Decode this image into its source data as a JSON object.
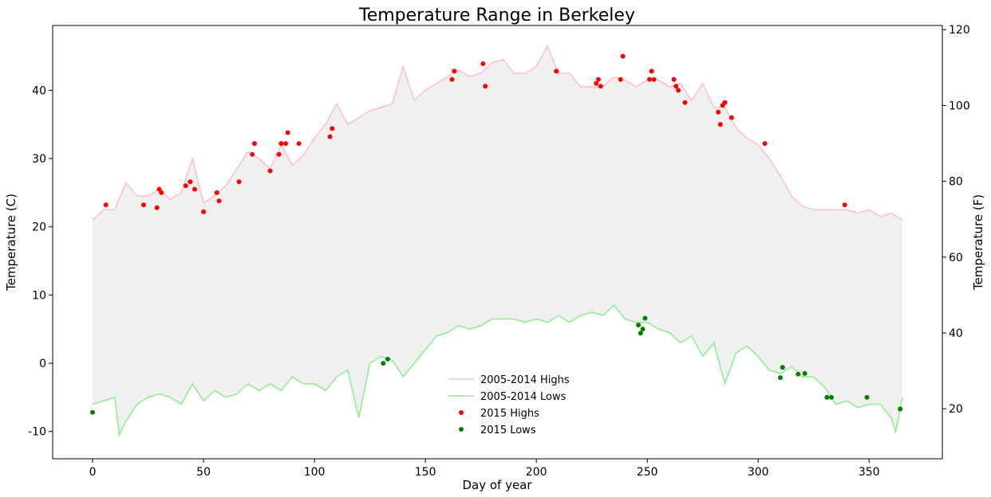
{
  "chart_data": {
    "type": "line",
    "title": "Temperature Range in Berkeley",
    "xlabel": "Day of year",
    "ylabel": "Temperature (C)",
    "ylabel_right": "Temperature (F)",
    "xlim": [
      -18,
      383
    ],
    "ylim": [
      -14,
      49.5
    ],
    "ylim_right": [
      6.8,
      121.1
    ],
    "xticks": [
      0,
      50,
      100,
      150,
      200,
      250,
      300,
      350
    ],
    "yticks": [
      -10,
      0,
      10,
      20,
      30,
      40
    ],
    "yticks_right": [
      20,
      40,
      60,
      80,
      100,
      120
    ],
    "fill_between_color": "#f0f0f0",
    "grid": false,
    "legend_position": "lower-center",
    "series": [
      {
        "name": "2005-2014 Highs",
        "color": "#ffc0cb",
        "x": [
          0,
          5,
          10,
          15,
          20,
          25,
          30,
          35,
          40,
          45,
          50,
          55,
          60,
          65,
          70,
          75,
          80,
          85,
          90,
          95,
          100,
          105,
          110,
          115,
          120,
          125,
          130,
          135,
          140,
          145,
          150,
          155,
          160,
          165,
          170,
          175,
          180,
          185,
          190,
          195,
          200,
          205,
          210,
          215,
          220,
          225,
          230,
          235,
          240,
          245,
          250,
          255,
          260,
          265,
          270,
          275,
          280,
          285,
          290,
          295,
          300,
          305,
          310,
          315,
          320,
          325,
          330,
          335,
          340,
          345,
          350,
          355,
          360,
          365
        ],
        "y": [
          21,
          22.5,
          22.5,
          26.5,
          24.5,
          24.5,
          25.5,
          24,
          25,
          30,
          23.5,
          24.5,
          26,
          28.5,
          31,
          30,
          28.5,
          32,
          29,
          30.5,
          33,
          35,
          38,
          35,
          36,
          37,
          37.5,
          38,
          43.5,
          38.5,
          40,
          41,
          42,
          43,
          42,
          42.5,
          44,
          44.5,
          42.5,
          42.5,
          43.5,
          46.5,
          42.5,
          42.5,
          40.5,
          40.5,
          40.5,
          42,
          41.5,
          40.5,
          41.5,
          41.5,
          40.5,
          41,
          38.5,
          41,
          37.5,
          37.5,
          34.5,
          33,
          32,
          30,
          27.5,
          24.5,
          23,
          22.5,
          22.5,
          22.5,
          22.5,
          22,
          22.5,
          21.5,
          22,
          21
        ]
      },
      {
        "name": "2005-2014 Lows",
        "color": "#90ee90",
        "x": [
          0,
          5,
          10,
          12,
          15,
          20,
          25,
          30,
          35,
          40,
          45,
          50,
          55,
          60,
          65,
          70,
          75,
          80,
          85,
          90,
          95,
          100,
          105,
          110,
          115,
          120,
          125,
          130,
          135,
          140,
          145,
          150,
          155,
          160,
          165,
          170,
          175,
          180,
          185,
          190,
          195,
          200,
          205,
          210,
          215,
          220,
          225,
          230,
          235,
          240,
          245,
          250,
          255,
          260,
          265,
          270,
          275,
          280,
          285,
          290,
          295,
          300,
          305,
          310,
          315,
          320,
          325,
          330,
          335,
          340,
          345,
          350,
          355,
          360,
          362,
          365
        ],
        "y": [
          -6,
          -5.5,
          -5,
          -10.5,
          -8.5,
          -6,
          -5,
          -4.5,
          -5,
          -6,
          -3,
          -5.5,
          -4,
          -5,
          -4.5,
          -3,
          -4,
          -3,
          -4,
          -2,
          -3,
          -3,
          -4,
          -2,
          -1,
          -8,
          0,
          1,
          0.5,
          -2,
          0,
          2,
          4,
          4.5,
          5.5,
          5,
          5.5,
          6.5,
          6.5,
          6.5,
          6,
          6.5,
          6,
          7,
          6,
          7,
          7.5,
          7,
          8.5,
          6.5,
          6,
          6,
          5,
          4.5,
          3,
          4,
          1,
          3,
          -3,
          1.5,
          2.5,
          1,
          -1,
          -1.5,
          -0.5,
          -2,
          -2,
          -3.5,
          -6,
          -5.5,
          -6.5,
          -6,
          -6,
          -8,
          -10,
          -5
        ]
      },
      {
        "name": "2015 Highs",
        "type": "scatter",
        "color": "#ff0000",
        "x": [
          6,
          23,
          29,
          30,
          31,
          42,
          44,
          46,
          50,
          56,
          57,
          66,
          72,
          73,
          80,
          84,
          85,
          87,
          88,
          93,
          107,
          108,
          162,
          163,
          176,
          177,
          209,
          227,
          228,
          229,
          238,
          239,
          251,
          252,
          253,
          262,
          263,
          264,
          267,
          282,
          283,
          284,
          285,
          288,
          303,
          339
        ],
        "y": [
          23.2,
          23.2,
          22.8,
          25.5,
          25,
          26,
          26.6,
          25.5,
          22.2,
          25,
          23.8,
          26.6,
          30.6,
          32.2,
          28.2,
          30.6,
          32.2,
          32.2,
          33.8,
          32.2,
          33.2,
          34.4,
          41.6,
          42.8,
          43.9,
          40.6,
          42.8,
          41,
          41.6,
          40.6,
          41.6,
          45,
          41.6,
          42.8,
          41.6,
          41.6,
          40.6,
          40,
          38.2,
          36.8,
          35,
          37.8,
          38.2,
          36,
          32.2,
          23.2
        ]
      },
      {
        "name": "2015 Lows",
        "type": "scatter",
        "color": "#008000",
        "x": [
          0,
          131,
          133,
          246,
          247,
          248,
          249,
          310,
          311,
          318,
          321,
          331,
          333,
          349,
          364
        ],
        "y": [
          -7.2,
          0,
          0.6,
          5.6,
          4.4,
          5,
          6.6,
          -2.1,
          -0.6,
          -1.6,
          -1.5,
          -5,
          -5,
          -5,
          -6.7
        ]
      }
    ]
  }
}
